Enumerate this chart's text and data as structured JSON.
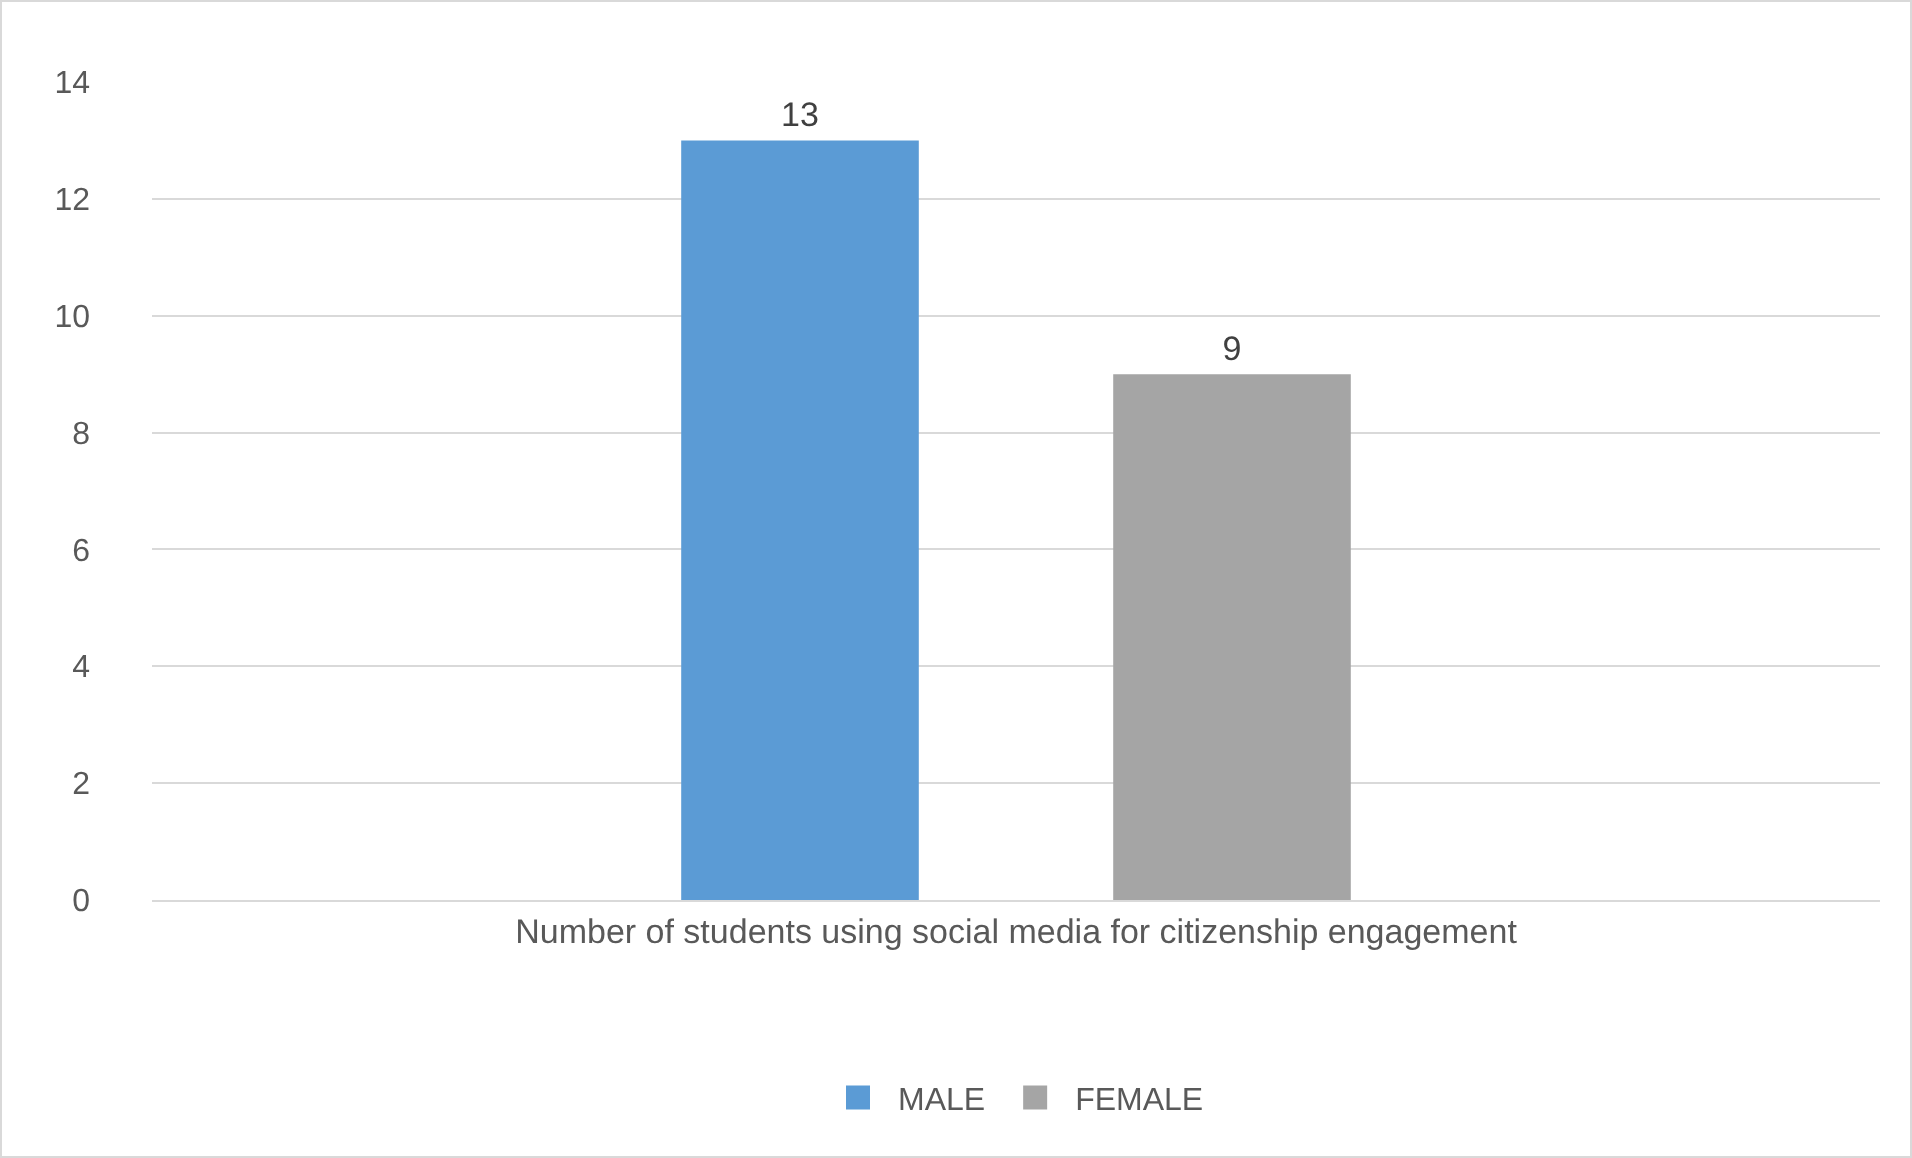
{
  "chart_data": {
    "type": "bar",
    "categories": [
      "Number of students using social media for citizenship engagement"
    ],
    "series": [
      {
        "name": "MALE",
        "color": "#5b9bd5",
        "values": [
          13
        ]
      },
      {
        "name": "FEMALE",
        "color": "#a5a5a5",
        "values": [
          9
        ]
      }
    ],
    "ylim": [
      0,
      14
    ],
    "yticks": [
      0,
      2,
      4,
      6,
      8,
      10,
      12,
      14
    ],
    "grid": "y",
    "legend": "bottom",
    "data_labels": true
  }
}
